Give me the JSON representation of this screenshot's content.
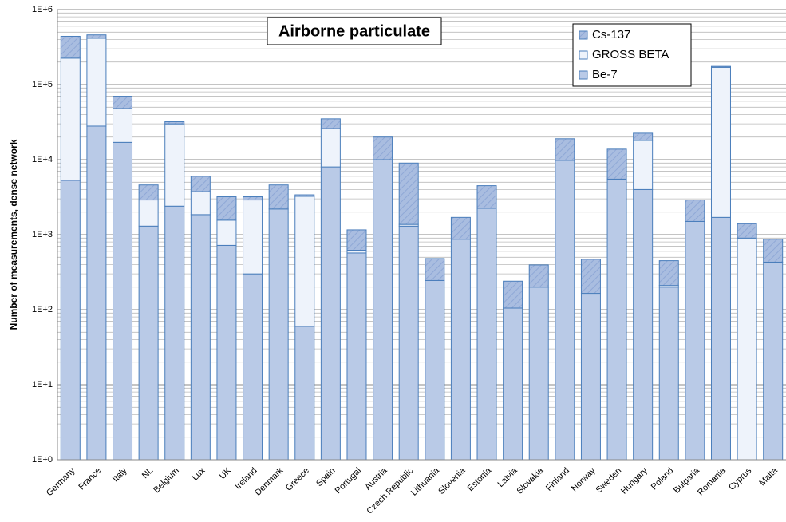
{
  "chart_data": {
    "type": "bar",
    "stacked": true,
    "log_scale": true,
    "grid": true,
    "minor_grid": true,
    "title": "Airborne particulate",
    "y_label": "Number of measurements, dense network",
    "legend_position": "upper right",
    "categories": [
      "Germany",
      "France",
      "Italy",
      "NL",
      "Belgium",
      "Lux",
      "UK",
      "Ireland",
      "Denmark",
      "Greece",
      "Spain",
      "Portugal",
      "Austria",
      "Czech Republic",
      "Lithuania",
      "Slovenia",
      "Estonia",
      "Latvia",
      "Slovakia",
      "Finland",
      "Norway",
      "Sweden",
      "Hungary",
      "Poland",
      "Bulgaria",
      "Romania",
      "Cyprus",
      "Malta"
    ],
    "series": [
      {
        "name": "Cs-137",
        "color": "#a9bde0",
        "hatch": true,
        "values": [
          215000,
          45000,
          22000,
          1700,
          2000,
          2250,
          1640,
          300,
          2400,
          150,
          9000,
          540,
          10000,
          7630,
          235,
          830,
          2250,
          135,
          195,
          9200,
          305,
          8300,
          4500,
          240,
          1400,
          5000,
          500,
          440
        ]
      },
      {
        "name": "GROSS BETA",
        "color": "#eef3fb",
        "hatch": false,
        "values": [
          220000,
          387000,
          31000,
          1600,
          27600,
          1900,
          840,
          2600,
          0,
          3190,
          18000,
          50,
          0,
          70,
          0,
          0,
          0,
          0,
          0,
          0,
          0,
          0,
          14000,
          10,
          0,
          168300,
          900,
          0
        ]
      },
      {
        "name": "Be-7",
        "color": "#b9cae7",
        "hatch": false,
        "values": [
          5300,
          28000,
          17000,
          1300,
          2400,
          1850,
          720,
          300,
          2200,
          60,
          8000,
          570,
          10000,
          1300,
          245,
          870,
          2250,
          105,
          200,
          9800,
          165,
          5500,
          4000,
          200,
          1500,
          1700,
          0,
          430
        ]
      }
    ],
    "ylim": [
      1,
      1000000
    ],
    "yticks": [
      {
        "value": 1,
        "label": "1E+0"
      },
      {
        "value": 10,
        "label": "1E+1"
      },
      {
        "value": 100,
        "label": "1E+2"
      },
      {
        "value": 1000,
        "label": "1E+3"
      },
      {
        "value": 10000,
        "label": "1E+4"
      },
      {
        "value": 100000,
        "label": "1E+5"
      },
      {
        "value": 1000000,
        "label": "1E+6"
      }
    ]
  }
}
